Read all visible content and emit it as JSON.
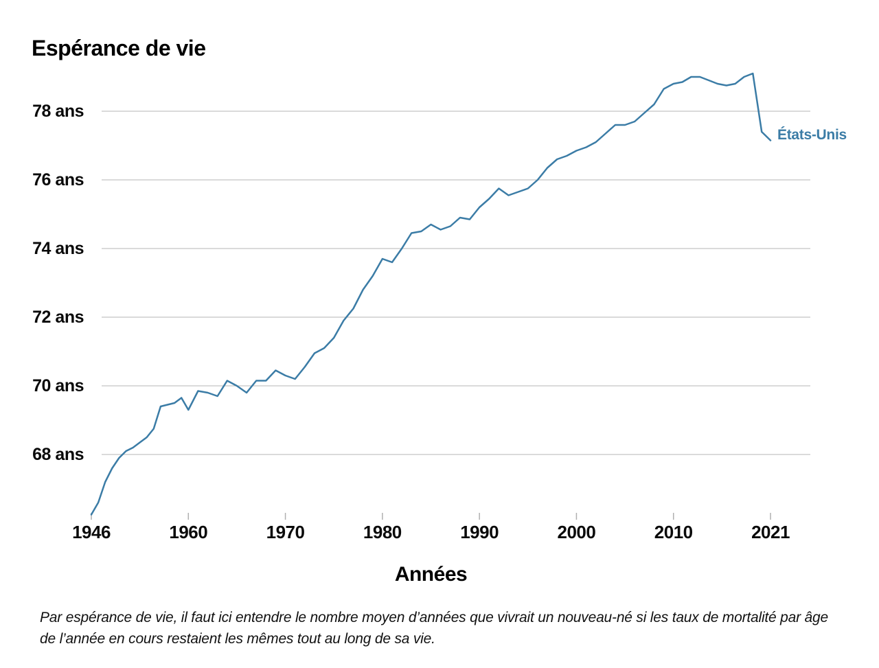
{
  "page": {
    "background": "#ffffff"
  },
  "header": {
    "title": "Espérance de vie"
  },
  "chart_data": {
    "type": "line",
    "title": "Espérance de vie",
    "xlabel": "Années",
    "x_tick_labels": [
      "1946",
      "1960",
      "1970",
      "1980",
      "1990",
      "2000",
      "2010",
      "2021"
    ],
    "x_tick_years": [
      1946,
      1960,
      1970,
      1980,
      1990,
      2000,
      2010,
      2021
    ],
    "y_ticks": [
      68,
      70,
      72,
      74,
      76,
      78
    ],
    "y_tick_labels": [
      "68 ans",
      "70 ans",
      "72 ans",
      "74 ans",
      "76 ans",
      "78 ans"
    ],
    "ylim": [
      66.0,
      79.6
    ],
    "grid": "horizontal-only",
    "gridline_color": "#b4b4b4",
    "legend_position": "end-of-line-right",
    "series": [
      {
        "name": "États-Unis",
        "color": "#3b7ca6",
        "start_year": 1946,
        "end_year": 2021,
        "values": [
          66.25,
          66.6,
          67.2,
          67.6,
          67.9,
          68.1,
          68.2,
          68.35,
          68.5,
          68.75,
          69.4,
          69.45,
          69.5,
          69.65,
          69.3,
          69.85,
          69.8,
          69.7,
          70.15,
          70.0,
          69.8,
          70.15,
          70.15,
          70.45,
          70.3,
          70.2,
          70.55,
          70.95,
          71.1,
          71.4,
          71.9,
          72.25,
          72.8,
          73.2,
          73.7,
          73.6,
          74.0,
          74.45,
          74.5,
          74.7,
          74.55,
          74.65,
          74.9,
          74.85,
          75.2,
          75.45,
          75.75,
          75.55,
          75.65,
          75.75,
          76.0,
          76.35,
          76.6,
          76.7,
          76.85,
          76.95,
          77.1,
          77.35,
          77.6,
          77.6,
          77.7,
          77.95,
          78.2,
          78.65,
          78.8,
          78.85,
          79.0,
          79.0,
          78.9,
          78.8,
          78.75,
          78.8,
          79.0,
          79.1,
          77.4,
          77.15
        ]
      }
    ]
  },
  "footnote": {
    "lines": [
      "Par espérance de vie, il faut ici entendre le nombre moyen d’années que vivrait un nouveau-né si les taux de mortalité par âge",
      "de l’année en cours restaient les mêmes tout au long de sa vie."
    ]
  }
}
